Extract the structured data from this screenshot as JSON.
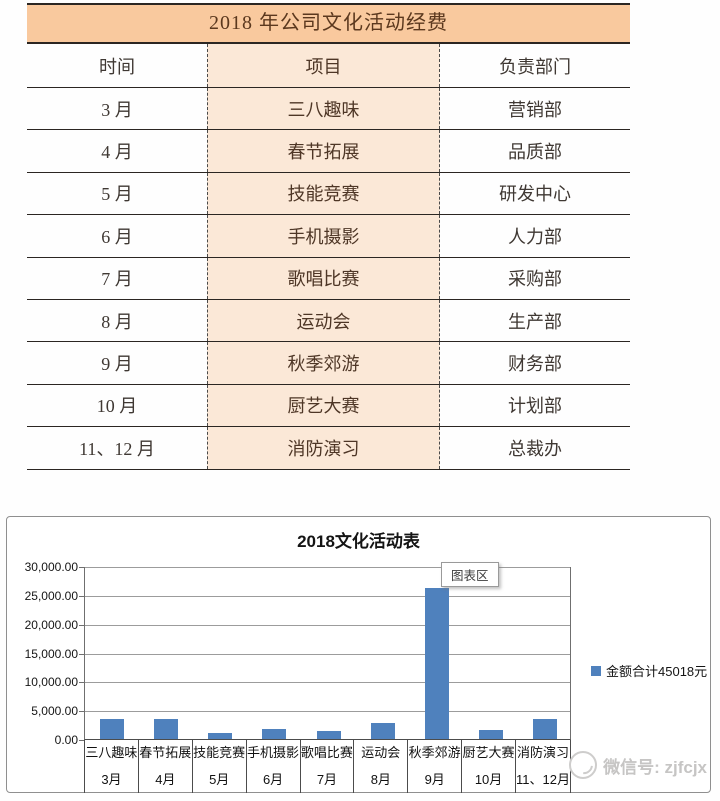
{
  "table": {
    "title": "2018 年公司文化活动经费",
    "headers": [
      "时间",
      "项目",
      "负责部门"
    ],
    "rows": [
      {
        "month": "3 月",
        "project": "三八趣味",
        "department": "营销部"
      },
      {
        "month": "4 月",
        "project": "春节拓展",
        "department": "品质部"
      },
      {
        "month": "5 月",
        "project": "技能竞赛",
        "department": "研发中心"
      },
      {
        "month": "6 月",
        "project": "手机摄影",
        "department": "人力部"
      },
      {
        "month": "7 月",
        "project": "歌唱比赛",
        "department": "采购部"
      },
      {
        "month": "8 月",
        "project": "运动会",
        "department": "生产部"
      },
      {
        "month": "9 月",
        "project": "秋季郊游",
        "department": "财务部"
      },
      {
        "month": "10 月",
        "project": "厨艺大赛",
        "department": "计划部"
      },
      {
        "month": "11、12 月",
        "project": "消防演习",
        "department": "总裁办"
      }
    ]
  },
  "chart": {
    "title": "2018文化活动表",
    "tooltip_label": "图表区",
    "legend_label": "金额合计45018元",
    "watermark_text": "微信号: zjfcjx"
  },
  "chart_data": {
    "type": "bar",
    "title": "2018文化活动表",
    "categories": [
      "三八趣味",
      "春节拓展",
      "技能竞赛",
      "手机摄影",
      "歌唱比赛",
      "运动会",
      "秋季郊游",
      "厨艺大赛",
      "消防演习"
    ],
    "months": [
      "3月",
      "4月",
      "5月",
      "6月",
      "7月",
      "8月",
      "9月",
      "10月",
      "11、12月"
    ],
    "values": [
      3500,
      3400,
      1000,
      1700,
      1400,
      2750,
      26218,
      1550,
      3500
    ],
    "series_name": "金额合计45018元",
    "series_total": 45018,
    "ylim": [
      0,
      30000
    ],
    "ytick_interval": 5000,
    "ytick_labels": [
      "0.00",
      "5,000.00",
      "10,000.00",
      "15,000.00",
      "20,000.00",
      "25,000.00",
      "30,000.00"
    ],
    "grid": true,
    "legend_position": "right",
    "bar_color": "#4f81bd"
  },
  "colors": {
    "table_title_bg": "#f9c99e",
    "project_column_bg": "#fbe8d7",
    "bar": "#4f81bd"
  }
}
